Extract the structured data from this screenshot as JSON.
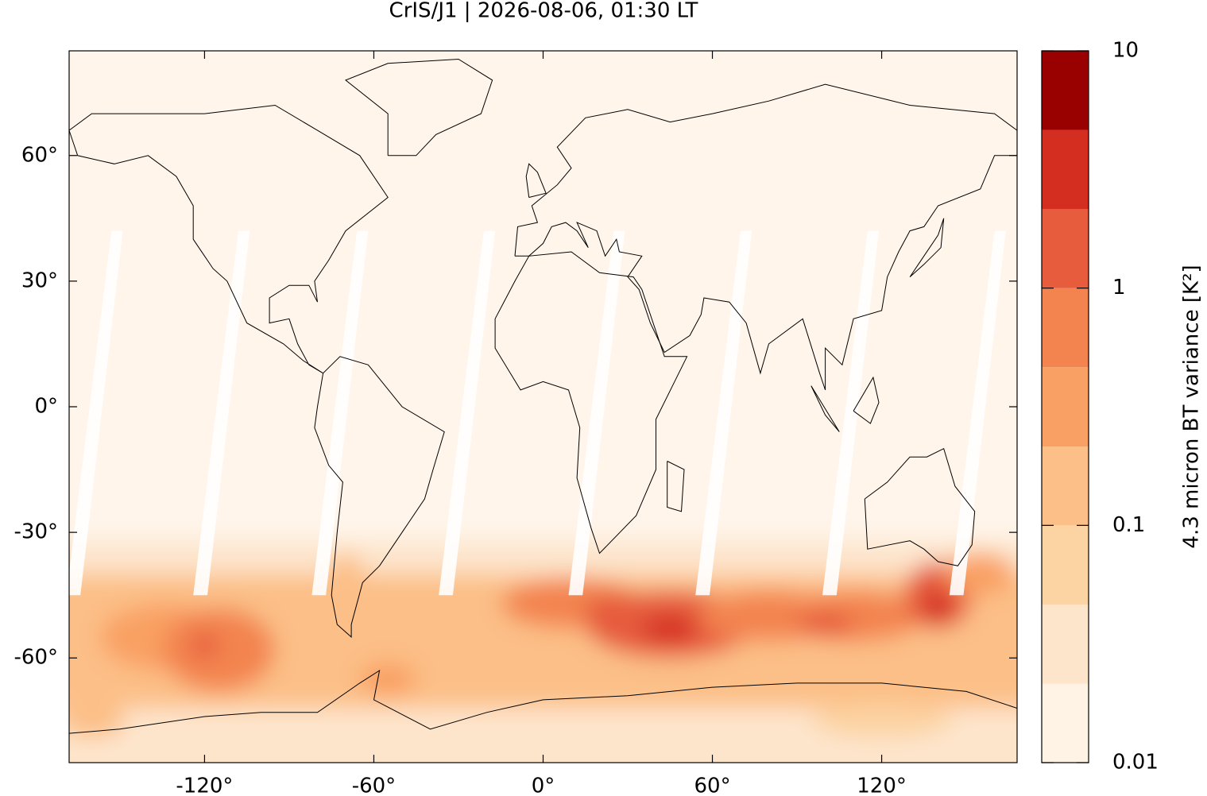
{
  "chart_data": {
    "type": "map",
    "title": "CrIS/J1 | 2026-08-06, 01:30 LT",
    "xlim": [
      -168,
      168
    ],
    "ylim": [
      -85,
      85
    ],
    "xticks": [
      {
        "value": -120,
        "label": "-120°"
      },
      {
        "value": -60,
        "label": "-60°"
      },
      {
        "value": 0,
        "label": "0°"
      },
      {
        "value": 60,
        "label": "60°"
      },
      {
        "value": 120,
        "label": "120°"
      }
    ],
    "yticks": [
      {
        "value": -60,
        "label": "-60°"
      },
      {
        "value": -30,
        "label": "-30°"
      },
      {
        "value": 0,
        "label": "0°"
      },
      {
        "value": 30,
        "label": "30°"
      },
      {
        "value": 60,
        "label": "60°"
      }
    ],
    "colorbar": {
      "label": "4.3 micron BT variance [K²]",
      "scale": "log",
      "clim": [
        0.01,
        10
      ],
      "ticks": [
        0.01,
        0.1,
        1,
        10
      ],
      "levels": [
        0.01,
        0.0215,
        0.0464,
        0.1,
        0.215,
        0.464,
        1,
        2.15,
        4.64,
        10
      ],
      "colors": [
        "#fff3e6",
        "#fde5cc",
        "#fcd3a2",
        "#fcbf87",
        "#f9a064",
        "#f3844f",
        "#e65c3c",
        "#d42e20",
        "#990000"
      ]
    }
  }
}
